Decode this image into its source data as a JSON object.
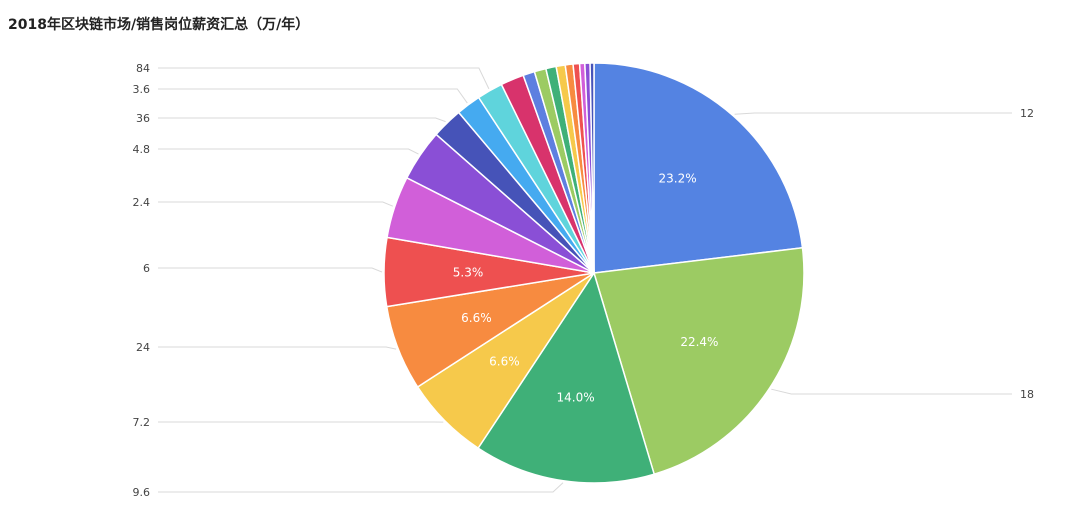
{
  "chart_data": {
    "type": "pie",
    "title": "2018年区块链市场/销售岗位薪资汇总（万/年）",
    "slices": [
      {
        "label": "12",
        "percent": 23.2,
        "pct_label": "23.2%",
        "color": "#5483e2"
      },
      {
        "label": "18",
        "percent": 22.4,
        "pct_label": "22.4%",
        "color": "#9ccb63"
      },
      {
        "label": "9.6",
        "percent": 14.0,
        "pct_label": "14.0%",
        "color": "#3fb078"
      },
      {
        "label": "7.2",
        "percent": 6.6,
        "pct_label": "6.6%",
        "color": "#f6c94b"
      },
      {
        "label": "24",
        "percent": 6.6,
        "pct_label": "6.6%",
        "color": "#f78b40"
      },
      {
        "label": "6",
        "percent": 5.3,
        "pct_label": "5.3%",
        "color": "#ee5050"
      },
      {
        "label": "2.4",
        "percent": 4.8,
        "pct_label": "",
        "color": "#d15fd9"
      },
      {
        "label": "4.8",
        "percent": 4.0,
        "pct_label": "",
        "color": "#8a4fd6"
      },
      {
        "label": "36",
        "percent": 2.4,
        "pct_label": "",
        "color": "#4653b8"
      },
      {
        "label": "3.6",
        "percent": 1.9,
        "pct_label": "",
        "color": "#45aaf0"
      },
      {
        "label": "84",
        "percent": 2.0,
        "pct_label": "",
        "color": "#5fd4dc"
      },
      {
        "label": "",
        "percent": 1.8,
        "pct_label": "",
        "color": "#d8336c"
      },
      {
        "label": "",
        "percent": 0.9,
        "pct_label": "",
        "color": "#5e7fe0"
      },
      {
        "label": "",
        "percent": 0.9,
        "pct_label": "",
        "color": "#9ccb63"
      },
      {
        "label": "",
        "percent": 0.8,
        "pct_label": "",
        "color": "#3fb078"
      },
      {
        "label": "",
        "percent": 0.7,
        "pct_label": "",
        "color": "#f6c94b"
      },
      {
        "label": "",
        "percent": 0.6,
        "pct_label": "",
        "color": "#f78b40"
      },
      {
        "label": "",
        "percent": 0.5,
        "pct_label": "",
        "color": "#ee5050"
      },
      {
        "label": "",
        "percent": 0.4,
        "pct_label": "",
        "color": "#d15fd9"
      },
      {
        "label": "",
        "percent": 0.4,
        "pct_label": "",
        "color": "#8a4fd6"
      },
      {
        "label": "",
        "percent": 0.3,
        "pct_label": "",
        "color": "#4653b8"
      }
    ]
  }
}
